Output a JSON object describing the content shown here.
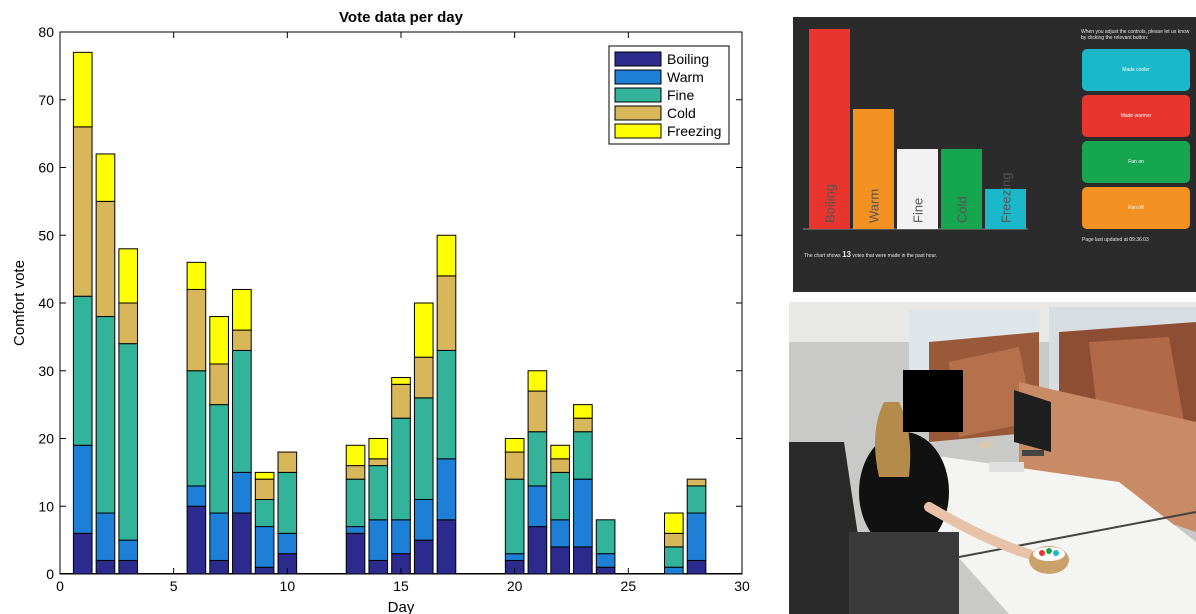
{
  "chart_data": {
    "type": "bar",
    "stacked": true,
    "title": "Vote data per day",
    "xlabel": "Day",
    "ylabel": "Comfort vote",
    "xlim": [
      0,
      30
    ],
    "ylim": [
      0,
      80
    ],
    "xticks": [
      0,
      5,
      10,
      15,
      20,
      25,
      30
    ],
    "yticks": [
      0,
      10,
      20,
      30,
      40,
      50,
      60,
      70,
      80
    ],
    "legend_position": "top-right",
    "x": [
      1,
      2,
      3,
      6,
      7,
      8,
      9,
      10,
      13,
      14,
      15,
      16,
      17,
      20,
      21,
      22,
      23,
      24,
      27,
      28
    ],
    "series": [
      {
        "name": "Boiling",
        "color": "#2d2a8e",
        "values": [
          6,
          2,
          2,
          10,
          2,
          9,
          1,
          3,
          6,
          2,
          3,
          5,
          8,
          2,
          7,
          4,
          4,
          1,
          0,
          2
        ]
      },
      {
        "name": "Warm",
        "color": "#1e7fd6",
        "values": [
          13,
          7,
          3,
          3,
          7,
          6,
          6,
          3,
          1,
          6,
          5,
          6,
          9,
          1,
          6,
          4,
          10,
          2,
          1,
          7
        ]
      },
      {
        "name": "Fine",
        "color": "#33b39a",
        "values": [
          22,
          29,
          29,
          17,
          16,
          18,
          4,
          9,
          7,
          8,
          15,
          15,
          16,
          11,
          8,
          7,
          7,
          5,
          3,
          4
        ]
      },
      {
        "name": "Cold",
        "color": "#d8b65a",
        "values": [
          25,
          17,
          6,
          12,
          6,
          3,
          3,
          3,
          2,
          1,
          5,
          6,
          11,
          4,
          6,
          2,
          2,
          0,
          2,
          1
        ]
      },
      {
        "name": "Freezing",
        "color": "#ffff00",
        "values": [
          11,
          7,
          8,
          4,
          7,
          6,
          1,
          0,
          3,
          3,
          1,
          8,
          6,
          2,
          3,
          2,
          2,
          0,
          3,
          0
        ]
      }
    ]
  },
  "dashboard": {
    "bars": [
      {
        "label": "Boiling",
        "value": 5,
        "color": "#e8352e"
      },
      {
        "label": "Warm",
        "value": 3,
        "color": "#f39223"
      },
      {
        "label": "Fine",
        "value": 2,
        "color": "#f2f2f2"
      },
      {
        "label": "Cold",
        "value": 2,
        "color": "#17a650"
      },
      {
        "label": "Freezing",
        "value": 1,
        "color": "#1bb8c9"
      }
    ],
    "instruction": "When you adjust the controls, please let us know by clicking the relevant button:",
    "buttons": [
      {
        "label": "Made cooler",
        "color": "#1bb8c9"
      },
      {
        "label": "Made warmer",
        "color": "#e8352e"
      },
      {
        "label": "Fan on",
        "color": "#17a650"
      },
      {
        "label": "Fan off",
        "color": "#f39223"
      }
    ],
    "footer_prefix": "The chart shows",
    "footer_count": "13",
    "footer_suffix": "votes that were made in the past hour.",
    "updated_text": "Page last updated at 09:36:03"
  },
  "photo": {
    "icons": [
      "office-desk",
      "person-seated",
      "monitor",
      "vote-device"
    ]
  }
}
